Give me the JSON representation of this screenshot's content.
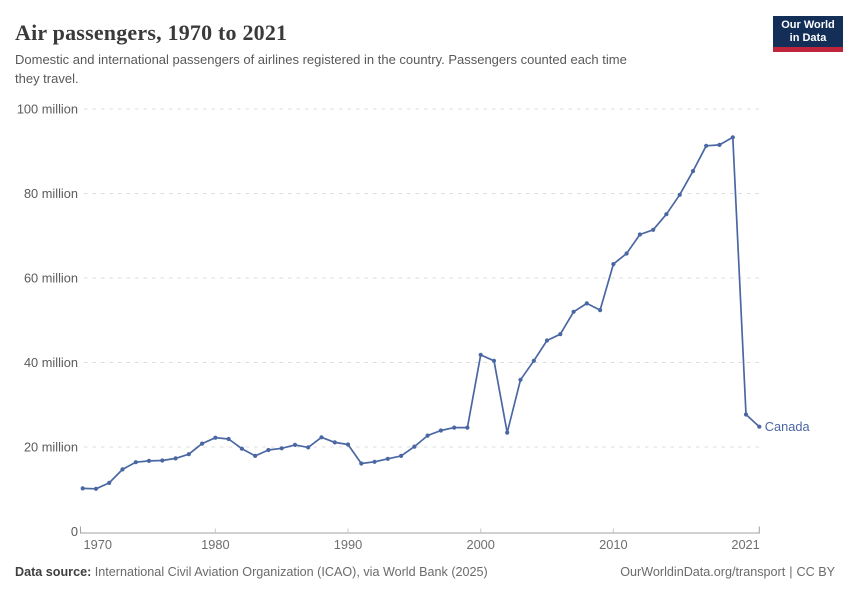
{
  "header": {
    "title": "Air passengers, 1970 to 2021",
    "subtitle_lines": [
      "Domestic and international passengers of airlines registered in the country. Passengers counted each time",
      "they travel."
    ],
    "logo": {
      "line1": "Our World",
      "line2": "in Data",
      "bg": "#132e57",
      "accent": "#c0243c"
    }
  },
  "footer": {
    "source_label": "Data source:",
    "source_text": " International Civil Aviation Organization (ICAO), via World Bank (2025)",
    "link_text": "OurWorldinData.org/transport",
    "separator": "|",
    "license": "CC BY"
  },
  "chart_data": {
    "type": "line",
    "title": "Air passengers, 1970 to 2021",
    "xlabel": "",
    "ylabel": "",
    "unit": "million passengers",
    "x": [
      1970,
      1971,
      1972,
      1973,
      1974,
      1975,
      1976,
      1977,
      1978,
      1979,
      1980,
      1981,
      1982,
      1983,
      1984,
      1985,
      1986,
      1987,
      1988,
      1989,
      1990,
      1991,
      1992,
      1993,
      1994,
      1995,
      1996,
      1997,
      1998,
      1999,
      2000,
      2001,
      2002,
      2003,
      2004,
      2005,
      2006,
      2007,
      2008,
      2009,
      2010,
      2011,
      2012,
      2013,
      2014,
      2015,
      2016,
      2017,
      2018,
      2019,
      2020,
      2021
    ],
    "series": [
      {
        "name": "Canada",
        "color": "#4a67a3",
        "values": [
          10.2,
          10.1,
          11.5,
          14.7,
          16.4,
          16.7,
          16.8,
          17.3,
          18.3,
          20.8,
          22.2,
          21.9,
          19.6,
          17.9,
          19.3,
          19.7,
          20.5,
          19.9,
          22.3,
          21.1,
          20.6,
          16.1,
          16.5,
          17.2,
          17.9,
          20.1,
          22.7,
          23.9,
          24.6,
          24.6,
          41.8,
          40.4,
          23.4,
          35.9,
          40.4,
          45.2,
          46.7,
          52.0,
          54.0,
          52.4,
          63.3,
          65.8,
          70.3,
          71.4,
          75.1,
          79.7,
          85.3,
          91.3,
          91.5,
          93.3,
          27.7,
          24.8
        ]
      }
    ],
    "xlim": [
      1970,
      2021
    ],
    "ylim": [
      0,
      100
    ],
    "yticks": [
      {
        "v": 0,
        "label": "0"
      },
      {
        "v": 20,
        "label": "20 million"
      },
      {
        "v": 40,
        "label": "40 million"
      },
      {
        "v": 60,
        "label": "60 million"
      },
      {
        "v": 80,
        "label": "80 million"
      },
      {
        "v": 100,
        "label": "100 million"
      }
    ],
    "xticks": [
      1970,
      1980,
      1990,
      2000,
      2010,
      2021
    ],
    "grid": "horizontal-dashed",
    "legend": "series-end-label"
  }
}
